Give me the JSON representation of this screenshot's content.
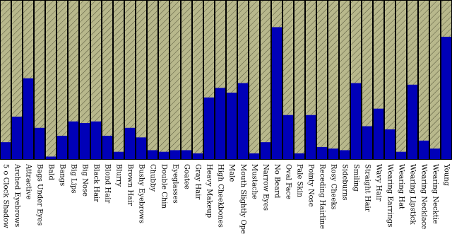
{
  "chart_data": {
    "type": "bar",
    "color": "#0000b8",
    "ylim": [
      0,
      1
    ],
    "categories": [
      "5 o Clock Shadow",
      "Arched Eyebrows",
      "Attractive",
      "Bags Under Eyes",
      "Bald",
      "Bangs",
      "Big Lips",
      "Big Nose",
      "Black Hair",
      "Blond Hair",
      "Blurry",
      "Brown Hair",
      "Bushy Eyebrows",
      "Chubby",
      "Double Chin",
      "Eyeglasses",
      "Goatee",
      "Gray Hair",
      "Heavy Makeup",
      "High Cheekbones",
      "Male",
      "Mouth Slightly Open",
      "Mustache",
      "Narrow Eyes",
      "No Beard",
      "Oval Face",
      "Pale Skin",
      "Pointy Nose",
      "Receding Hairline",
      "Rosy Cheeks",
      "Sideburns",
      "Smiling",
      "Straight Hair",
      "Wavy Hair",
      "Wearing Earrings",
      "Wearing Hat",
      "Wearing Lipstick",
      "Wearing Necklace",
      "Wearing Necktie",
      "Young"
    ],
    "values": [
      0.11,
      0.27,
      0.51,
      0.2,
      0.02,
      0.15,
      0.24,
      0.23,
      0.24,
      0.15,
      0.05,
      0.2,
      0.14,
      0.06,
      0.05,
      0.06,
      0.06,
      0.04,
      0.39,
      0.45,
      0.42,
      0.48,
      0.04,
      0.11,
      0.83,
      0.28,
      0.04,
      0.28,
      0.08,
      0.07,
      0.06,
      0.48,
      0.21,
      0.32,
      0.19,
      0.05,
      0.47,
      0.12,
      0.07,
      0.77
    ]
  }
}
